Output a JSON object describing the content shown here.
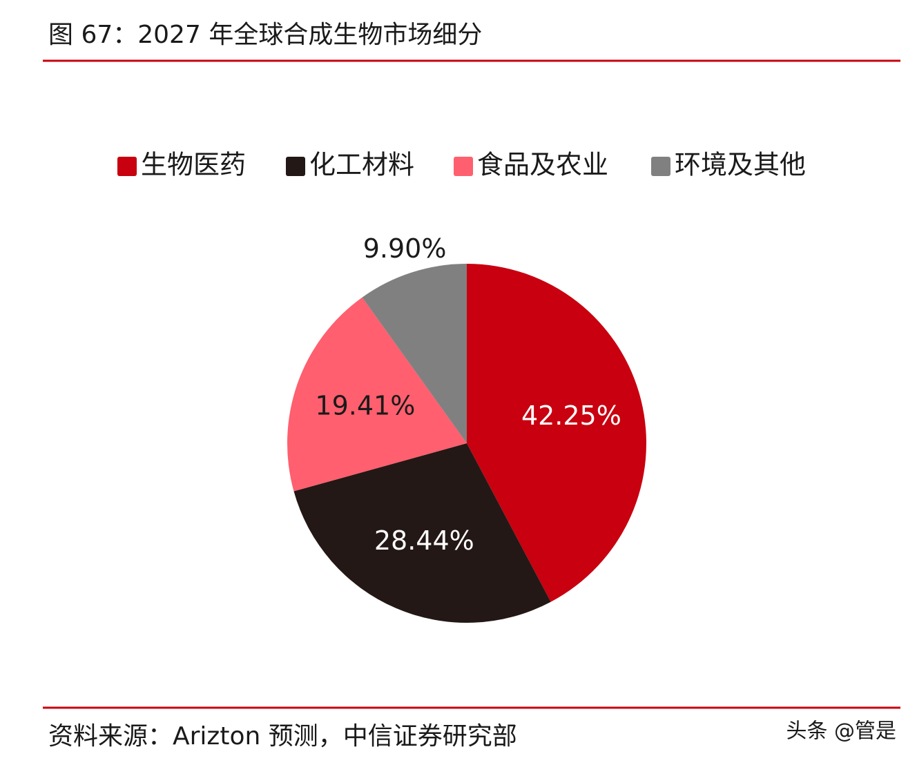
{
  "chart_data": {
    "type": "pie",
    "title": "图 67：2027 年全球合成生物市场细分",
    "categories": [
      "生物医药",
      "化工材料",
      "食品及农业",
      "环境及其他"
    ],
    "values": [
      42.25,
      28.44,
      19.41,
      9.9
    ],
    "value_labels": [
      "42.25%",
      "28.44%",
      "19.41%",
      "9.90%"
    ],
    "colors": [
      "#c8000f",
      "#231815",
      "#ff5f6e",
      "#808080"
    ],
    "label_colors": [
      "#ffffff",
      "#ffffff",
      "#1a1a1a",
      "#1a1a1a"
    ],
    "legend": "top",
    "source": "资料来源：Arizton 预测，中信证券研究部",
    "watermark": "头条 @管是"
  }
}
